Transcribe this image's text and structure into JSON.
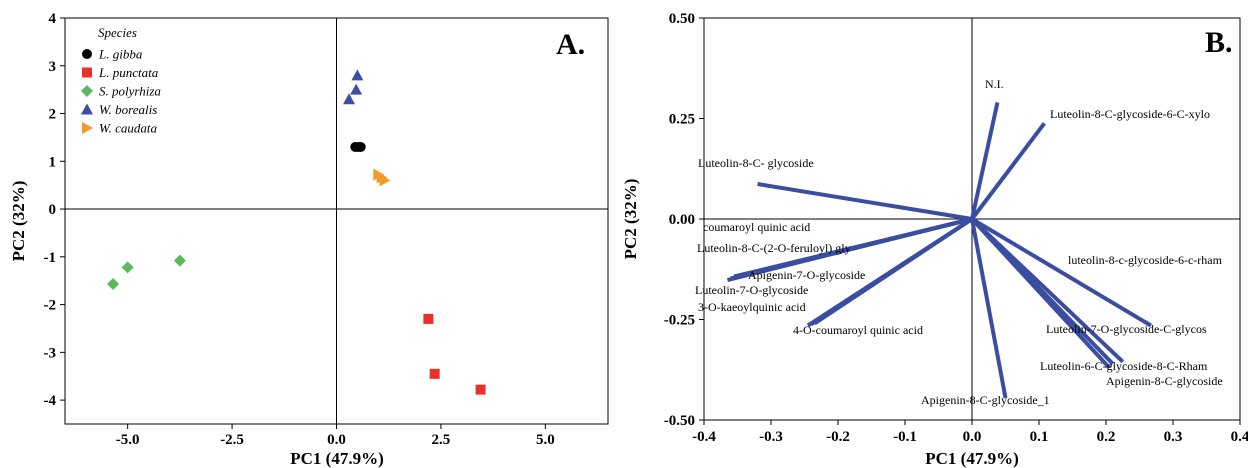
{
  "chart_data": [
    {
      "type": "scatter",
      "panel_label": "A.",
      "xlabel": "PC1 (47.9%)",
      "ylabel": "PC2 (32%)",
      "xlim": [
        -6.5,
        6.5
      ],
      "ylim": [
        -4.5,
        4
      ],
      "xticks": [
        -5.0,
        -2.5,
        0.0,
        2.5,
        5.0
      ],
      "xtick_labels": [
        "-5.0",
        "-2.5",
        "0.0",
        "2.5",
        "5.0"
      ],
      "yticks": [
        4,
        3,
        2,
        1,
        0,
        -1,
        -2,
        -3,
        -4
      ],
      "ytick_labels": [
        "4",
        "3",
        "2",
        "1",
        "0",
        "-1",
        "-2",
        "-3",
        "-4"
      ],
      "legend_title": "Species",
      "legend_position": "top-left",
      "series": [
        {
          "name": "L. gibba",
          "marker": "circle",
          "color": "#000000",
          "points": [
            [
              0.45,
              1.3
            ],
            [
              0.52,
              1.3
            ],
            [
              0.58,
              1.3
            ]
          ]
        },
        {
          "name": "L. punctata",
          "marker": "square",
          "color": "#e8312a",
          "points": [
            [
              2.2,
              -2.3
            ],
            [
              2.35,
              -3.45
            ],
            [
              3.45,
              -3.78
            ]
          ]
        },
        {
          "name": "S. polyrhiza",
          "marker": "diamond",
          "color": "#5cb85c",
          "points": [
            [
              -5.35,
              -1.57
            ],
            [
              -5.0,
              -1.22
            ],
            [
              -3.75,
              -1.08
            ]
          ]
        },
        {
          "name": "W. borealis",
          "marker": "triangle",
          "color": "#3b4ea3",
          "points": [
            [
              0.3,
              2.3
            ],
            [
              0.47,
              2.5
            ],
            [
              0.5,
              2.8
            ]
          ]
        },
        {
          "name": "W. caudata",
          "marker": "triangle-right",
          "color": "#f39a2c",
          "points": [
            [
              1.0,
              0.72
            ],
            [
              1.08,
              0.66
            ],
            [
              1.15,
              0.6
            ]
          ]
        }
      ]
    },
    {
      "type": "biplot",
      "panel_label": "B.",
      "xlabel": "PC1 (47.9%)",
      "ylabel": "PC2 (32%)",
      "xlim": [
        -0.4,
        0.4
      ],
      "ylim": [
        -0.5,
        0.5
      ],
      "xticks": [
        -0.4,
        -0.3,
        -0.2,
        -0.1,
        0.0,
        0.1,
        0.2,
        0.3,
        0.4
      ],
      "xtick_labels": [
        "-0.4",
        "-0.3",
        "-0.2",
        "-0.1",
        "0.0",
        "0.1",
        "0.2",
        "0.3",
        "0.4"
      ],
      "yticks": [
        0.5,
        0.25,
        0.0,
        -0.25,
        -0.5
      ],
      "ytick_labels": [
        "0.50",
        "0.25",
        "0.00",
        "-0.25",
        "-0.50"
      ],
      "vector_color": "#3a4da0",
      "vectors": [
        {
          "name": "N.I.",
          "x": 0.038,
          "y": 0.29
        },
        {
          "name": "Luteolin-8-C-glycoside-6-C-xylo",
          "x": 0.108,
          "y": 0.238
        },
        {
          "name": "Luteolin-8-C- glycoside",
          "x": -0.32,
          "y": 0.087
        },
        {
          "name": "coumaroyl quinic acid",
          "x": -0.365,
          "y": -0.152
        },
        {
          "name": "Luteolin-8-C-(2-O-feruloyl) gly",
          "x": -0.36,
          "y": -0.148
        },
        {
          "name": "Apigenin-7-O-glycoside",
          "x": -0.24,
          "y": -0.262
        },
        {
          "name": "Luteolin-7-O-glycoside",
          "x": -0.355,
          "y": -0.143
        },
        {
          "name": "3-O-kaeoylquinic acid",
          "x": -0.245,
          "y": -0.265
        },
        {
          "name": "4-O-coumaroyl quinic acid",
          "x": -0.235,
          "y": -0.26
        },
        {
          "name": "luteolin-8-c-glycoside-6-c-rham",
          "x": 0.267,
          "y": -0.265
        },
        {
          "name": "Luteolin-7-O-glycoside-C-glycos",
          "x": 0.225,
          "y": -0.355
        },
        {
          "name": "Luteolin-6-C-glycoside-8-C-Rham",
          "x": 0.205,
          "y": -0.37
        },
        {
          "name": "Apigenin-8-C-glycoside",
          "x": 0.21,
          "y": -0.36
        },
        {
          "name": "Apigenin-8-C-glycoside_1",
          "x": 0.05,
          "y": -0.445
        }
      ]
    }
  ]
}
